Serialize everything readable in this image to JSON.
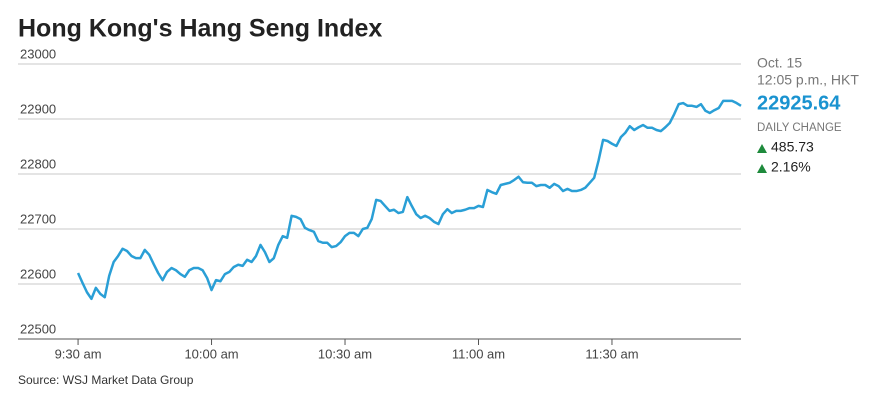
{
  "chart_data": {
    "type": "line",
    "title": "Hong Kong's Hang Seng Index",
    "source": "Source: WSJ Market Data Group",
    "panel": {
      "date": "Oct. 15",
      "time": "12:05 p.m., HKT",
      "last": "22925.64",
      "change_label": "DAILY CHANGE",
      "change": "485.73",
      "change_pct": "2.16%"
    },
    "x": [
      570,
      571,
      572,
      573,
      574,
      575,
      576,
      577,
      578,
      579,
      580,
      581,
      582,
      583,
      584,
      585,
      586,
      587,
      588,
      589,
      590,
      591,
      592,
      593,
      594,
      595,
      596,
      597,
      598,
      599,
      600,
      601,
      602,
      603,
      604,
      605,
      606,
      607,
      608,
      609,
      610,
      611,
      612,
      613,
      614,
      615,
      616,
      617,
      618,
      619,
      620,
      621,
      622,
      623,
      624,
      625,
      626,
      627,
      628,
      629,
      630,
      631,
      632,
      633,
      634,
      635,
      636,
      637,
      638,
      639,
      640,
      641,
      642,
      643,
      644,
      645,
      646,
      647,
      648,
      649,
      650,
      651,
      652,
      653,
      654,
      655,
      656,
      657,
      658,
      659,
      660,
      661,
      662,
      663,
      664,
      665,
      666,
      667,
      668,
      669,
      670,
      671,
      672,
      673,
      674,
      675,
      676,
      677,
      678,
      679,
      680,
      681,
      682,
      683,
      684,
      685,
      686,
      687,
      688,
      689,
      690,
      691,
      692,
      693,
      694,
      695,
      696,
      697,
      698,
      699,
      700,
      701,
      702,
      703,
      704,
      705,
      706,
      707,
      708,
      709,
      710,
      711,
      712,
      713,
      714,
      715,
      716,
      717,
      718,
      719
    ],
    "series": [
      {
        "color": "#2a9fd6",
        "values": [
          22620,
          22602,
          22585,
          22573,
          22593,
          22582,
          22576,
          22615,
          22640,
          22651,
          22664,
          22660,
          22651,
          22647,
          22647,
          22662,
          22653,
          22636,
          22620,
          22607,
          22622,
          22629,
          22625,
          22618,
          22613,
          22625,
          22629,
          22629,
          22625,
          22611,
          22589,
          22607,
          22605,
          22618,
          22622,
          22631,
          22635,
          22633,
          22644,
          22640,
          22651,
          22671,
          22658,
          22640,
          22647,
          22671,
          22687,
          22684,
          22724,
          22722,
          22718,
          22702,
          22698,
          22695,
          22678,
          22675,
          22675,
          22667,
          22669,
          22676,
          22687,
          22693,
          22693,
          22687,
          22700,
          22702,
          22718,
          22753,
          22751,
          22742,
          22733,
          22735,
          22729,
          22731,
          22758,
          22742,
          22727,
          22720,
          22724,
          22720,
          22713,
          22709,
          22727,
          22736,
          22729,
          22733,
          22733,
          22735,
          22738,
          22738,
          22742,
          22740,
          22771,
          22767,
          22764,
          22780,
          22782,
          22784,
          22789,
          22795,
          22785,
          22784,
          22784,
          22778,
          22780,
          22780,
          22775,
          22782,
          22778,
          22769,
          22773,
          22769,
          22769,
          22771,
          22775,
          22784,
          22793,
          22825,
          22862,
          22860,
          22855,
          22851,
          22867,
          22875,
          22887,
          22880,
          22885,
          22889,
          22884,
          22884,
          22880,
          22878,
          22885,
          22893,
          22909,
          22927,
          22929,
          22924,
          22924,
          22922,
          22927,
          22915,
          22911,
          22916,
          22920,
          22933,
          22933,
          22933,
          22929,
          22924
        ]
      }
    ],
    "xlim": [
      556.5,
      719
    ],
    "xticks": [
      {
        "value": 570,
        "label": "9:30 am"
      },
      {
        "value": 600,
        "label": "10:00 am"
      },
      {
        "value": 630,
        "label": "10:30 am"
      },
      {
        "value": 660,
        "label": "11:00 am"
      },
      {
        "value": 690,
        "label": "11:30 am"
      }
    ],
    "ylim": [
      22500,
      23000
    ],
    "yticks": [
      22500,
      22600,
      22700,
      22800,
      22900,
      23000
    ],
    "grid": true
  }
}
